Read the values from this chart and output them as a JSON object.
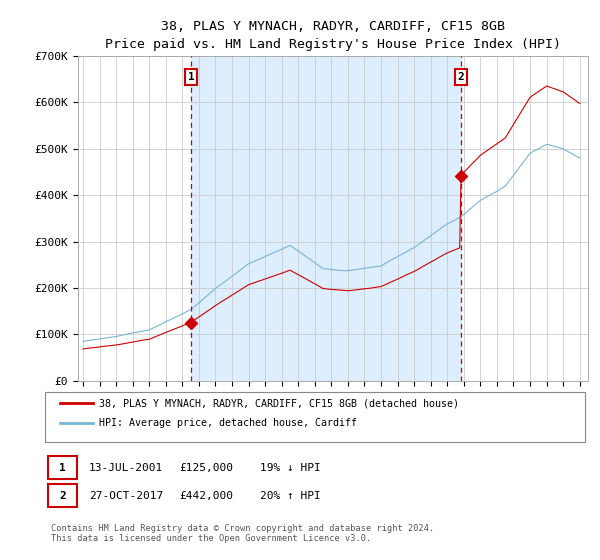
{
  "title": "38, PLAS Y MYNACH, RADYR, CARDIFF, CF15 8GB",
  "subtitle": "Price paid vs. HM Land Registry's House Price Index (HPI)",
  "ylim": [
    0,
    700000
  ],
  "yticks": [
    0,
    100000,
    200000,
    300000,
    400000,
    500000,
    600000,
    700000
  ],
  "ytick_labels": [
    "£0",
    "£100K",
    "£200K",
    "£300K",
    "£400K",
    "£500K",
    "£600K",
    "£700K"
  ],
  "sale1": {
    "date_num": 2001.54,
    "price": 125000,
    "label": "1",
    "date_str": "13-JUL-2001",
    "pct": "19% ↓ HPI"
  },
  "sale2": {
    "date_num": 2017.83,
    "price": 442000,
    "label": "2",
    "date_str": "27-OCT-2017",
    "pct": "20% ↑ HPI"
  },
  "hpi_color": "#7ab4d8",
  "sale_color": "#cc0000",
  "vline_color": "#cc0000",
  "background_color": "#ffffff",
  "plot_bg_color": "#ffffff",
  "shade_color": "#ddeeff",
  "legend_line1": "38, PLAS Y MYNACH, RADYR, CARDIFF, CF15 8GB (detached house)",
  "legend_line2": "HPI: Average price, detached house, Cardiff",
  "footer1": "Contains HM Land Registry data © Crown copyright and database right 2024.",
  "footer2": "This data is licensed under the Open Government Licence v3.0.",
  "xstart": 1995,
  "xend": 2025
}
